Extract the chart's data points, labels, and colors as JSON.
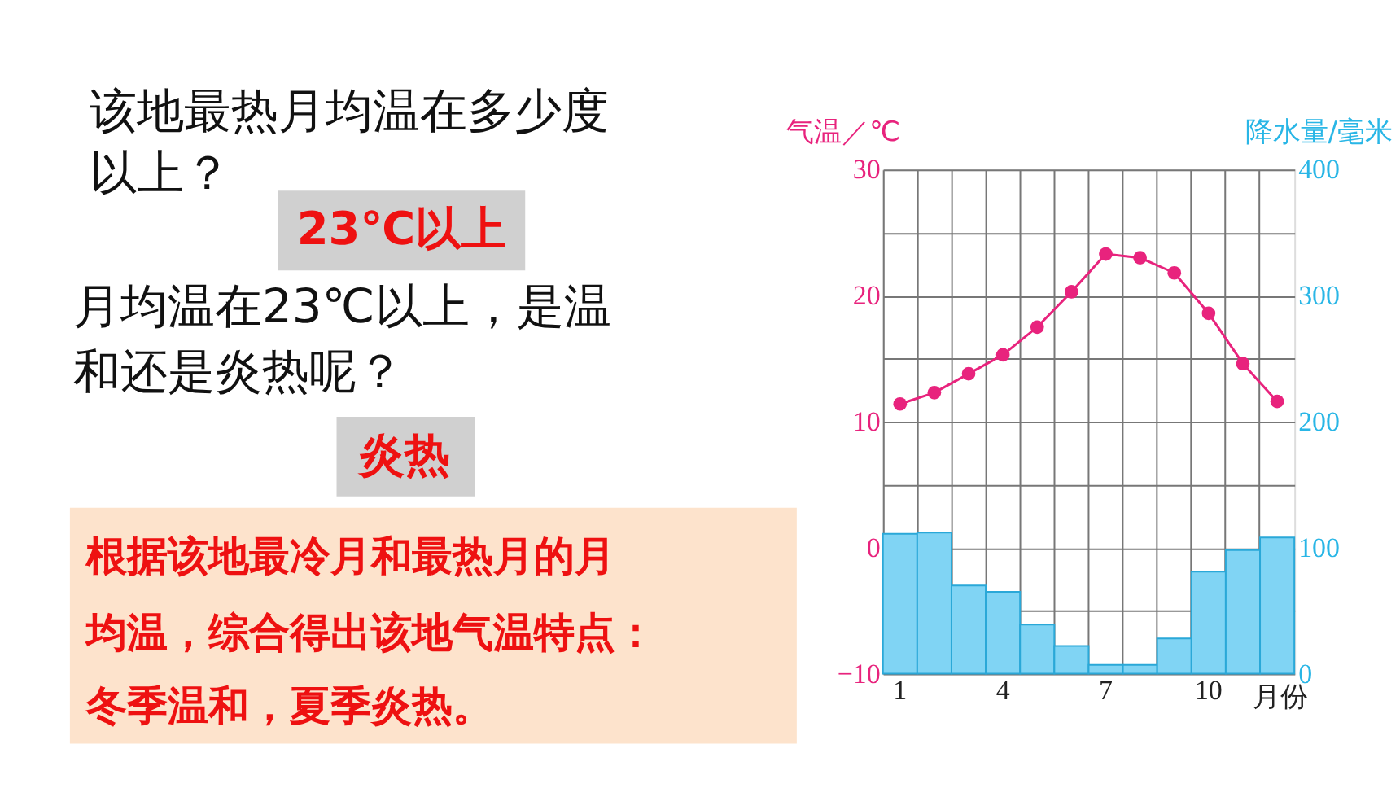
{
  "chart_data": {
    "type": "bar",
    "categories": [
      "1",
      null,
      null,
      "4",
      null,
      null,
      "7",
      null,
      null,
      "10",
      null,
      null
    ],
    "xlabel": "月份",
    "ylabel": "气温／℃",
    "y2label": "降水量/毫米",
    "series": [
      {
        "axis": "y2",
        "color": "#80d4f4",
        "values": [
          111,
          112,
          70,
          65,
          39,
          22,
          7,
          7,
          28,
          81,
          98,
          108
        ]
      },
      {
        "type": "line",
        "axis": "y",
        "color": "#e8237d",
        "values": [
          11.4,
          12.3,
          13.8,
          15.3,
          17.5,
          20.3,
          23.3,
          23.0,
          21.8,
          18.6,
          14.6,
          11.6
        ]
      }
    ],
    "ylim": [
      -10,
      30
    ],
    "yticks": [
      -10,
      {
        "value": -5,
        "label": null
      },
      0,
      {
        "value": 5,
        "label": null
      },
      10,
      {
        "value": 15,
        "label": null
      },
      20,
      {
        "value": 25,
        "label": null
      },
      30
    ],
    "y2lim": [
      0,
      400
    ],
    "y2ticks": [
      0,
      100,
      200,
      300,
      400
    ],
    "grid": true,
    "marker": "circle",
    "annotations": [
      "该地最热月均温在多少度",
      "以上？",
      "23℃以上",
      "月均温在23℃以上，是温",
      "和还是炎热呢？",
      "炎热",
      "根据该地最冷月和最热月的月",
      "均温，综合得出该地气温特点：",
      "冬季温和，夏季炎热。"
    ]
  }
}
